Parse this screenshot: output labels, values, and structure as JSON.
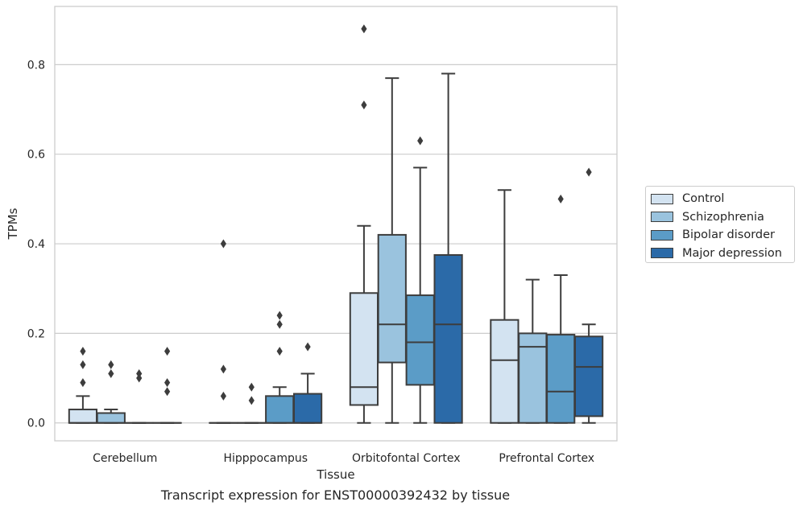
{
  "chart_data": {
    "type": "box",
    "caption": "Transcript expression for ENST00000392432 by tissue",
    "xlabel": "Tissue",
    "ylabel": "TPMs",
    "ylim": [
      -0.04,
      0.93
    ],
    "yticks": [
      "0.0",
      "0.2",
      "0.4",
      "0.6",
      "0.8"
    ],
    "grid": "horizontal",
    "legend_position": "outside-right",
    "categories": [
      "Cerebellum",
      "Hipppocampus",
      "Orbitofontal Cortex",
      "Prefrontal Cortex"
    ],
    "series": [
      {
        "name": "Control",
        "color": "#d3e3f1",
        "boxes": [
          {
            "whisker_low": 0.0,
            "q1": 0.0,
            "median": 0.0,
            "q3": 0.03,
            "whisker_high": 0.06,
            "outliers": [
              0.09,
              0.13,
              0.16
            ]
          },
          {
            "whisker_low": 0.0,
            "q1": 0.0,
            "median": 0.0,
            "q3": 0.0,
            "whisker_high": 0.0,
            "outliers": [
              0.06,
              0.12,
              0.4
            ]
          },
          {
            "whisker_low": 0.0,
            "q1": 0.04,
            "median": 0.08,
            "q3": 0.29,
            "whisker_high": 0.44,
            "outliers": [
              0.71,
              0.88
            ]
          },
          {
            "whisker_low": 0.0,
            "q1": 0.0,
            "median": 0.14,
            "q3": 0.23,
            "whisker_high": 0.52,
            "outliers": []
          }
        ]
      },
      {
        "name": "Schizophrenia",
        "color": "#9ac3de",
        "boxes": [
          {
            "whisker_low": 0.0,
            "q1": 0.0,
            "median": 0.0,
            "q3": 0.022,
            "whisker_high": 0.03,
            "outliers": [
              0.11,
              0.13
            ]
          },
          {
            "whisker_low": 0.0,
            "q1": 0.0,
            "median": 0.0,
            "q3": 0.0,
            "whisker_high": 0.0,
            "outliers": [
              0.05,
              0.08
            ]
          },
          {
            "whisker_low": 0.0,
            "q1": 0.135,
            "median": 0.22,
            "q3": 0.42,
            "whisker_high": 0.77,
            "outliers": []
          },
          {
            "whisker_low": 0.0,
            "q1": 0.0,
            "median": 0.17,
            "q3": 0.2,
            "whisker_high": 0.32,
            "outliers": []
          }
        ]
      },
      {
        "name": "Bipolar disorder",
        "color": "#5b9cc7",
        "boxes": [
          {
            "whisker_low": 0.0,
            "q1": 0.0,
            "median": 0.0,
            "q3": 0.0,
            "whisker_high": 0.0,
            "outliers": [
              0.1,
              0.11
            ]
          },
          {
            "whisker_low": 0.0,
            "q1": 0.0,
            "median": 0.0,
            "q3": 0.06,
            "whisker_high": 0.08,
            "outliers": [
              0.16,
              0.22,
              0.24
            ]
          },
          {
            "whisker_low": 0.0,
            "q1": 0.085,
            "median": 0.18,
            "q3": 0.285,
            "whisker_high": 0.57,
            "outliers": [
              0.63
            ]
          },
          {
            "whisker_low": 0.0,
            "q1": 0.0,
            "median": 0.07,
            "q3": 0.197,
            "whisker_high": 0.33,
            "outliers": [
              0.5
            ]
          }
        ]
      },
      {
        "name": "Major depression",
        "color": "#2b6aa8",
        "boxes": [
          {
            "whisker_low": 0.0,
            "q1": 0.0,
            "median": 0.0,
            "q3": 0.0,
            "whisker_high": 0.0,
            "outliers": [
              0.07,
              0.09,
              0.16
            ]
          },
          {
            "whisker_low": 0.0,
            "q1": 0.0,
            "median": 0.0,
            "q3": 0.065,
            "whisker_high": 0.11,
            "outliers": [
              0.17
            ]
          },
          {
            "whisker_low": 0.0,
            "q1": 0.0,
            "median": 0.22,
            "q3": 0.375,
            "whisker_high": 0.78,
            "outliers": []
          },
          {
            "whisker_low": 0.0,
            "q1": 0.015,
            "median": 0.125,
            "q3": 0.193,
            "whisker_high": 0.22,
            "outliers": [
              0.56
            ]
          }
        ]
      }
    ]
  }
}
